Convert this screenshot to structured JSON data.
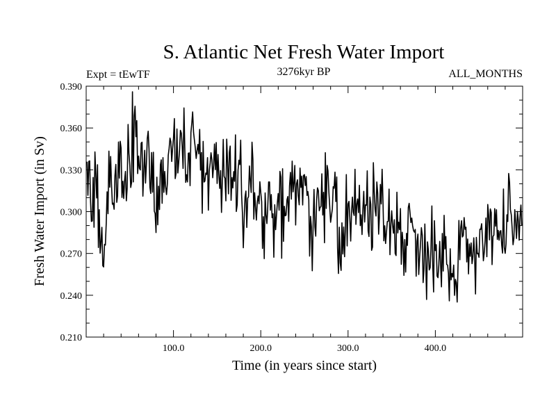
{
  "chart_data": {
    "type": "line",
    "title": "S. Atlantic Net Fresh Water Import",
    "subtitle": "3276kyr BP",
    "annotation_left": "Expt = tEwTF",
    "annotation_right": "ALL_MONTHS",
    "xlabel": "Time (in years since start)",
    "ylabel": "Fresh Water Import (in Sv)",
    "xlim": [
      0,
      500
    ],
    "ylim": [
      0.21,
      0.39
    ],
    "x_ticks": [
      100,
      200,
      300,
      400
    ],
    "x_tick_labels": [
      "100.0",
      "200.0",
      "300.0",
      "400.0"
    ],
    "y_ticks": [
      0.21,
      0.24,
      0.27,
      0.3,
      0.33,
      0.36,
      0.39
    ],
    "y_tick_labels": [
      "0.210",
      "0.240",
      "0.270",
      "0.300",
      "0.330",
      "0.360",
      "0.390"
    ],
    "grid": false,
    "series": [
      {
        "name": "Fresh Water Import",
        "color": "#000000",
        "x": [
          1,
          5,
          10,
          15,
          20,
          25,
          30,
          35,
          40,
          45,
          50,
          55,
          60,
          65,
          70,
          75,
          80,
          85,
          90,
          95,
          100,
          105,
          110,
          115,
          120,
          125,
          130,
          135,
          140,
          145,
          150,
          155,
          160,
          165,
          170,
          175,
          180,
          185,
          190,
          195,
          200,
          205,
          210,
          215,
          220,
          225,
          230,
          235,
          240,
          245,
          250,
          255,
          260,
          265,
          270,
          275,
          280,
          285,
          290,
          295,
          300,
          305,
          310,
          315,
          320,
          325,
          330,
          335,
          340,
          345,
          350,
          355,
          360,
          365,
          370,
          375,
          380,
          385,
          390,
          395,
          400,
          405,
          410,
          415,
          420,
          425,
          430,
          435,
          440,
          445,
          450,
          455,
          460,
          465,
          470,
          475,
          480,
          485,
          490,
          495,
          499
        ],
        "values": [
          0.322,
          0.3,
          0.318,
          0.288,
          0.262,
          0.318,
          0.332,
          0.322,
          0.33,
          0.32,
          0.345,
          0.355,
          0.34,
          0.335,
          0.342,
          0.332,
          0.302,
          0.33,
          0.322,
          0.34,
          0.345,
          0.343,
          0.352,
          0.34,
          0.342,
          0.35,
          0.336,
          0.335,
          0.322,
          0.327,
          0.34,
          0.33,
          0.342,
          0.322,
          0.325,
          0.33,
          0.31,
          0.322,
          0.316,
          0.312,
          0.303,
          0.298,
          0.314,
          0.29,
          0.31,
          0.298,
          0.306,
          0.314,
          0.303,
          0.318,
          0.302,
          0.308,
          0.293,
          0.302,
          0.31,
          0.306,
          0.298,
          0.318,
          0.272,
          0.299,
          0.3,
          0.312,
          0.293,
          0.298,
          0.302,
          0.298,
          0.31,
          0.302,
          0.3,
          0.286,
          0.3,
          0.29,
          0.291,
          0.28,
          0.283,
          0.287,
          0.276,
          0.281,
          0.266,
          0.28,
          0.279,
          0.268,
          0.266,
          0.262,
          0.256,
          0.27,
          0.276,
          0.276,
          0.278,
          0.268,
          0.282,
          0.289,
          0.29,
          0.282,
          0.296,
          0.276,
          0.28,
          0.292,
          0.282,
          0.288,
          0.283
        ]
      }
    ],
    "extremes": {
      "max": {
        "x": 53,
        "y": 0.386
      },
      "min": {
        "x": 416,
        "y": 0.236
      }
    }
  }
}
